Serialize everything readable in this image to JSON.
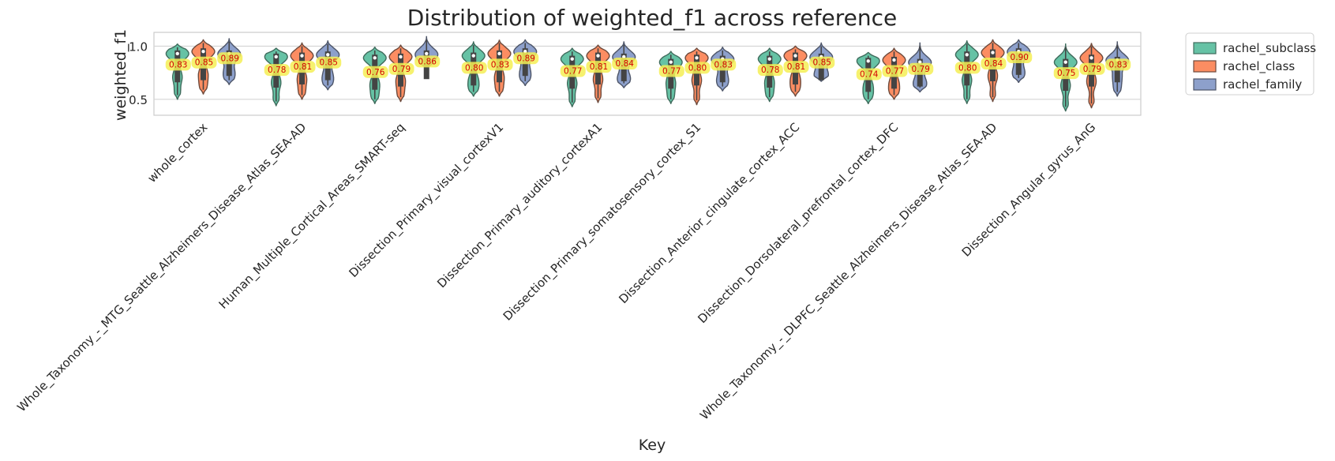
{
  "chart_data": {
    "type": "violin",
    "title": "Distribution of weighted_f1 across reference",
    "xlabel": "Key",
    "ylabel": "weighted_f1",
    "ylim": [
      0.35,
      1.13
    ],
    "yticks": [
      0.5,
      1.0
    ],
    "ytick_labels": [
      "0.5",
      "1.0"
    ],
    "grid": true,
    "legend_position": "outside-top-right",
    "categories": [
      "whole_cortex",
      "Whole_Taxonomy_-_MTG_Seattle_Alzheimers_Disease_Atlas_SEA-AD",
      "Human_Multiple_Cortical_Areas_SMART-seq",
      "Dissection_Primary_visual_cortexV1",
      "Dissection_Primary_auditory_cortexA1",
      "Dissection_Primary_somatosensory_cortex_S1",
      "Dissection_Anterior_cingulate_cortex_ACC",
      "Dissection_Dorsolateral_prefrontal_cortex_DFC",
      "Whole_Taxonomy_-_DLPFC_Seattle_Alzheimers_Disease_Atlas_SEA-AD",
      "Dissection_Angular_gyrus_AnG"
    ],
    "series": [
      {
        "name": "rachel_subclass",
        "color": "#66c2a5",
        "edge": "#3f6b5c",
        "means": [
          0.83,
          0.78,
          0.76,
          0.8,
          0.77,
          0.77,
          0.78,
          0.74,
          0.8,
          0.75
        ],
        "mean_labels": [
          "0.83",
          "0.78",
          "0.76",
          "0.80",
          "0.77",
          "0.77",
          "0.78",
          "0.74",
          "0.80",
          "0.75"
        ],
        "min": [
          0.5,
          0.44,
          0.46,
          0.53,
          0.43,
          0.46,
          0.48,
          0.46,
          0.46,
          0.39
        ],
        "max": [
          1.02,
          0.98,
          0.99,
          1.04,
          0.98,
          0.95,
          0.98,
          0.94,
          1.05,
          1.02
        ],
        "median": [
          0.93,
          0.9,
          0.89,
          0.91,
          0.88,
          0.85,
          0.88,
          0.86,
          0.92,
          0.85
        ]
      },
      {
        "name": "rachel_class",
        "color": "#fc8d62",
        "edge": "#6d4a3c",
        "means": [
          0.85,
          0.81,
          0.79,
          0.83,
          0.81,
          0.8,
          0.81,
          0.77,
          0.84,
          0.79
        ],
        "mean_labels": [
          "0.85",
          "0.81",
          "0.79",
          "0.83",
          "0.81",
          "0.80",
          "0.81",
          "0.77",
          "0.84",
          "0.79"
        ],
        "min": [
          0.55,
          0.5,
          0.48,
          0.53,
          0.47,
          0.45,
          0.53,
          0.5,
          0.48,
          0.42
        ],
        "max": [
          1.06,
          1.03,
          1.01,
          1.06,
          1.01,
          0.98,
          1.0,
          0.98,
          1.06,
          1.03
        ],
        "median": [
          0.95,
          0.91,
          0.9,
          0.93,
          0.91,
          0.89,
          0.91,
          0.87,
          0.94,
          0.89
        ]
      },
      {
        "name": "rachel_family",
        "color": "#8da0cb",
        "edge": "#4d5568",
        "means": [
          0.89,
          0.85,
          0.86,
          0.89,
          0.84,
          0.83,
          0.85,
          0.79,
          0.9,
          0.83
        ],
        "mean_labels": [
          "0.89",
          "0.85",
          "0.86",
          "0.89",
          "0.84",
          "0.83",
          "0.85",
          "0.79",
          "0.90",
          "0.83"
        ],
        "min": [
          0.64,
          0.59,
          0.79,
          0.63,
          0.61,
          0.58,
          0.67,
          0.57,
          0.66,
          0.53
        ],
        "max": [
          1.07,
          1.05,
          1.09,
          1.06,
          1.04,
          0.99,
          1.03,
          1.03,
          1.06,
          1.04
        ],
        "median": [
          0.93,
          0.92,
          0.93,
          0.95,
          0.9,
          0.88,
          0.9,
          0.85,
          0.95,
          0.87
        ]
      }
    ]
  }
}
